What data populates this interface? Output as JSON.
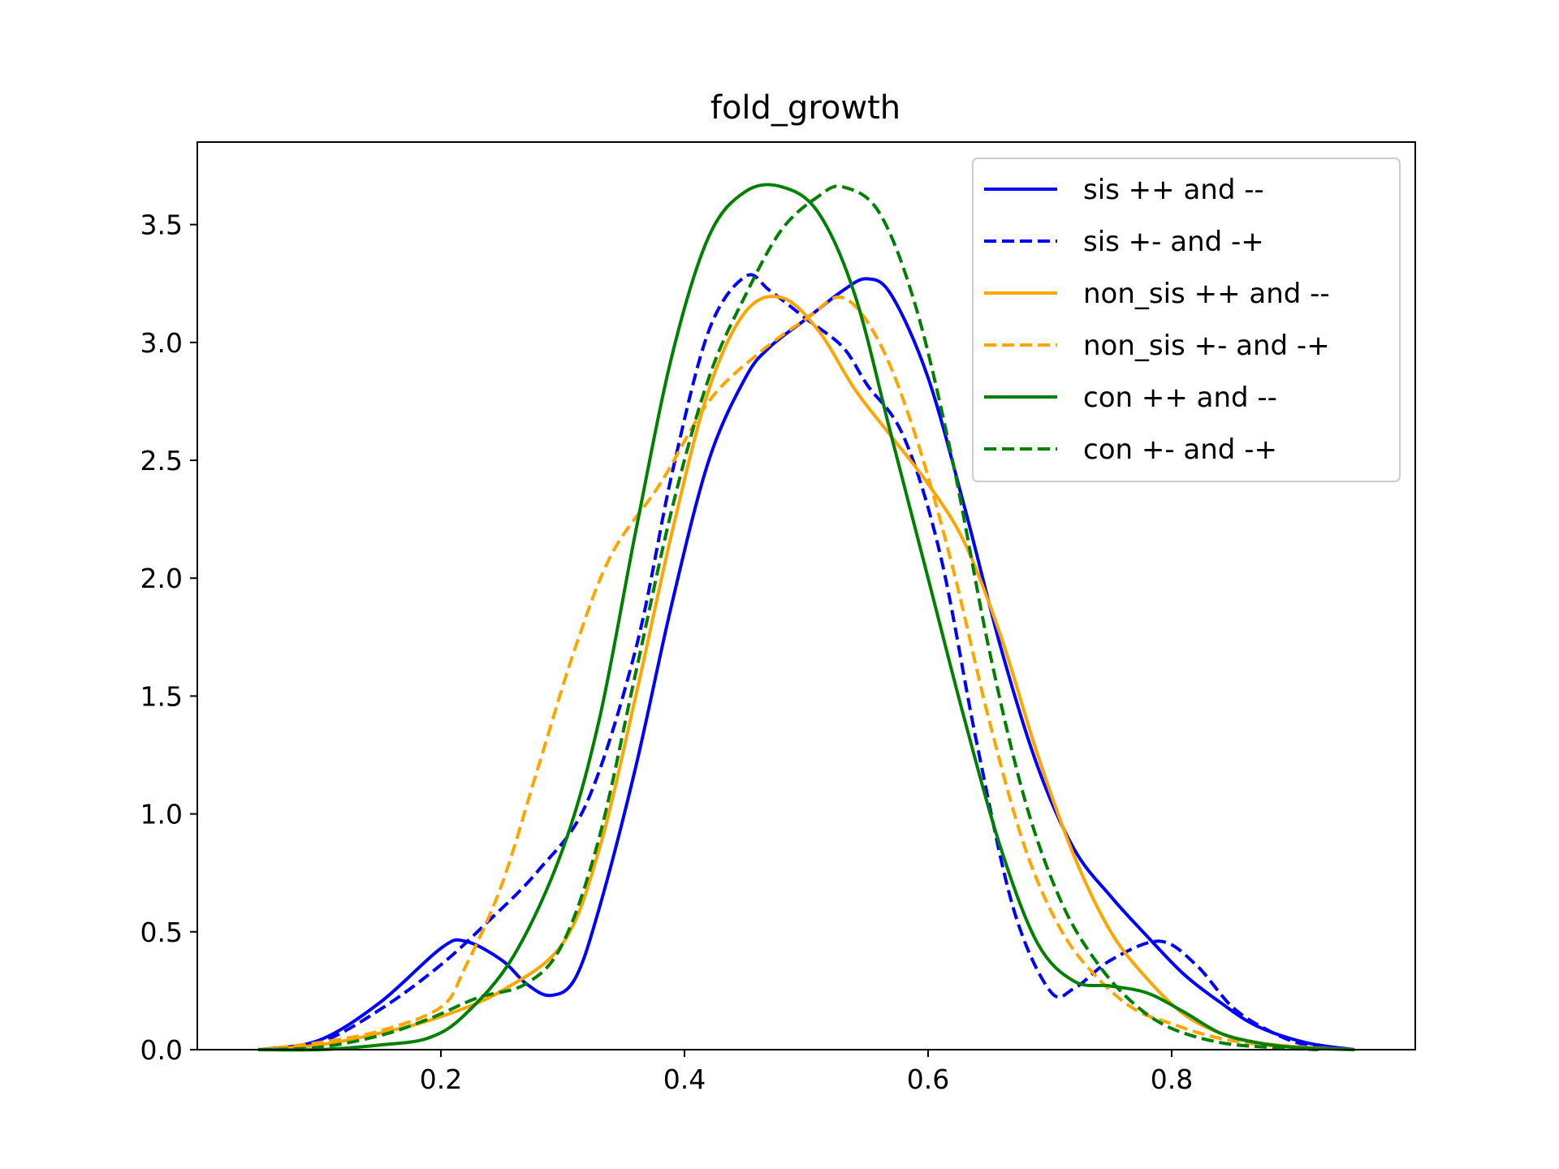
{
  "chart_data": {
    "type": "line",
    "title": "fold_growth",
    "xlabel": "",
    "ylabel": "",
    "xlim": [
      0.0,
      1.0
    ],
    "ylim": [
      0.0,
      3.85
    ],
    "xticks": [
      0.2,
      0.4,
      0.6,
      0.8
    ],
    "xtick_labels": [
      "0.2",
      "0.4",
      "0.6",
      "0.8"
    ],
    "yticks": [
      0.0,
      0.5,
      1.0,
      1.5,
      2.0,
      2.5,
      3.0,
      3.5
    ],
    "ytick_labels": [
      "0.0",
      "0.5",
      "1.0",
      "1.5",
      "2.0",
      "2.5",
      "3.0",
      "3.5"
    ],
    "grid": false,
    "legend_position": "top-right",
    "series": [
      {
        "name": "sis ++ and --",
        "color": "#0000ff",
        "style": "solid",
        "points": [
          [
            0.05,
            0.0
          ],
          [
            0.1,
            0.04
          ],
          [
            0.15,
            0.2
          ],
          [
            0.2,
            0.43
          ],
          [
            0.22,
            0.46
          ],
          [
            0.25,
            0.38
          ],
          [
            0.27,
            0.28
          ],
          [
            0.29,
            0.23
          ],
          [
            0.31,
            0.3
          ],
          [
            0.33,
            0.6
          ],
          [
            0.36,
            1.2
          ],
          [
            0.39,
            1.9
          ],
          [
            0.42,
            2.5
          ],
          [
            0.45,
            2.85
          ],
          [
            0.47,
            2.98
          ],
          [
            0.5,
            3.1
          ],
          [
            0.53,
            3.22
          ],
          [
            0.55,
            3.27
          ],
          [
            0.57,
            3.2
          ],
          [
            0.6,
            2.85
          ],
          [
            0.63,
            2.3
          ],
          [
            0.66,
            1.7
          ],
          [
            0.69,
            1.2
          ],
          [
            0.72,
            0.85
          ],
          [
            0.75,
            0.65
          ],
          [
            0.78,
            0.48
          ],
          [
            0.81,
            0.32
          ],
          [
            0.84,
            0.2
          ],
          [
            0.87,
            0.1
          ],
          [
            0.91,
            0.03
          ],
          [
            0.95,
            0.0
          ]
        ]
      },
      {
        "name": "sis +- and -+",
        "color": "#0000ff",
        "style": "dashed",
        "points": [
          [
            0.05,
            0.0
          ],
          [
            0.1,
            0.03
          ],
          [
            0.15,
            0.17
          ],
          [
            0.2,
            0.36
          ],
          [
            0.24,
            0.55
          ],
          [
            0.28,
            0.76
          ],
          [
            0.32,
            1.05
          ],
          [
            0.36,
            1.7
          ],
          [
            0.39,
            2.45
          ],
          [
            0.42,
            3.05
          ],
          [
            0.45,
            3.28
          ],
          [
            0.47,
            3.22
          ],
          [
            0.5,
            3.1
          ],
          [
            0.53,
            2.98
          ],
          [
            0.55,
            2.82
          ],
          [
            0.58,
            2.6
          ],
          [
            0.61,
            2.1
          ],
          [
            0.64,
            1.3
          ],
          [
            0.67,
            0.6
          ],
          [
            0.7,
            0.25
          ],
          [
            0.72,
            0.26
          ],
          [
            0.75,
            0.38
          ],
          [
            0.79,
            0.46
          ],
          [
            0.82,
            0.36
          ],
          [
            0.85,
            0.18
          ],
          [
            0.88,
            0.08
          ],
          [
            0.91,
            0.02
          ],
          [
            0.95,
            0.0
          ]
        ]
      },
      {
        "name": "non_sis ++ and --",
        "color": "#ffa500",
        "style": "solid",
        "points": [
          [
            0.05,
            0.0
          ],
          [
            0.1,
            0.02
          ],
          [
            0.15,
            0.07
          ],
          [
            0.2,
            0.14
          ],
          [
            0.25,
            0.25
          ],
          [
            0.3,
            0.45
          ],
          [
            0.33,
            0.85
          ],
          [
            0.36,
            1.5
          ],
          [
            0.39,
            2.2
          ],
          [
            0.42,
            2.8
          ],
          [
            0.45,
            3.13
          ],
          [
            0.48,
            3.19
          ],
          [
            0.51,
            3.05
          ],
          [
            0.54,
            2.8
          ],
          [
            0.57,
            2.6
          ],
          [
            0.6,
            2.4
          ],
          [
            0.63,
            2.15
          ],
          [
            0.66,
            1.75
          ],
          [
            0.69,
            1.25
          ],
          [
            0.72,
            0.82
          ],
          [
            0.75,
            0.5
          ],
          [
            0.78,
            0.3
          ],
          [
            0.81,
            0.15
          ],
          [
            0.84,
            0.07
          ],
          [
            0.87,
            0.03
          ],
          [
            0.91,
            0.01
          ],
          [
            0.95,
            0.0
          ]
        ]
      },
      {
        "name": "non_sis +- and -+",
        "color": "#ffa500",
        "style": "dashed",
        "points": [
          [
            0.05,
            0.0
          ],
          [
            0.1,
            0.03
          ],
          [
            0.15,
            0.08
          ],
          [
            0.2,
            0.18
          ],
          [
            0.22,
            0.35
          ],
          [
            0.25,
            0.7
          ],
          [
            0.28,
            1.2
          ],
          [
            0.31,
            1.7
          ],
          [
            0.34,
            2.1
          ],
          [
            0.38,
            2.4
          ],
          [
            0.42,
            2.75
          ],
          [
            0.46,
            2.95
          ],
          [
            0.5,
            3.1
          ],
          [
            0.53,
            3.19
          ],
          [
            0.56,
            3.0
          ],
          [
            0.59,
            2.6
          ],
          [
            0.62,
            2.05
          ],
          [
            0.65,
            1.4
          ],
          [
            0.68,
            0.85
          ],
          [
            0.71,
            0.5
          ],
          [
            0.74,
            0.3
          ],
          [
            0.77,
            0.17
          ],
          [
            0.8,
            0.11
          ],
          [
            0.83,
            0.06
          ],
          [
            0.86,
            0.03
          ],
          [
            0.9,
            0.01
          ],
          [
            0.95,
            0.0
          ]
        ]
      },
      {
        "name": "con ++ and --",
        "color": "#008000",
        "style": "solid",
        "points": [
          [
            0.05,
            0.0
          ],
          [
            0.1,
            0.0
          ],
          [
            0.15,
            0.02
          ],
          [
            0.19,
            0.05
          ],
          [
            0.22,
            0.15
          ],
          [
            0.26,
            0.4
          ],
          [
            0.3,
            0.85
          ],
          [
            0.33,
            1.4
          ],
          [
            0.36,
            2.2
          ],
          [
            0.39,
            2.95
          ],
          [
            0.42,
            3.45
          ],
          [
            0.45,
            3.64
          ],
          [
            0.48,
            3.66
          ],
          [
            0.51,
            3.55
          ],
          [
            0.54,
            3.2
          ],
          [
            0.57,
            2.6
          ],
          [
            0.6,
            2.0
          ],
          [
            0.63,
            1.4
          ],
          [
            0.66,
            0.85
          ],
          [
            0.69,
            0.45
          ],
          [
            0.72,
            0.29
          ],
          [
            0.75,
            0.27
          ],
          [
            0.78,
            0.24
          ],
          [
            0.81,
            0.16
          ],
          [
            0.84,
            0.07
          ],
          [
            0.87,
            0.03
          ],
          [
            0.9,
            0.01
          ],
          [
            0.95,
            0.0
          ]
        ]
      },
      {
        "name": "con +- and -+",
        "color": "#008000",
        "style": "dashed",
        "points": [
          [
            0.05,
            0.0
          ],
          [
            0.1,
            0.01
          ],
          [
            0.15,
            0.06
          ],
          [
            0.19,
            0.13
          ],
          [
            0.23,
            0.22
          ],
          [
            0.27,
            0.28
          ],
          [
            0.3,
            0.45
          ],
          [
            0.33,
            0.9
          ],
          [
            0.36,
            1.6
          ],
          [
            0.39,
            2.3
          ],
          [
            0.42,
            2.85
          ],
          [
            0.45,
            3.2
          ],
          [
            0.48,
            3.48
          ],
          [
            0.51,
            3.62
          ],
          [
            0.53,
            3.66
          ],
          [
            0.56,
            3.55
          ],
          [
            0.59,
            3.15
          ],
          [
            0.62,
            2.5
          ],
          [
            0.65,
            1.7
          ],
          [
            0.68,
            1.05
          ],
          [
            0.71,
            0.62
          ],
          [
            0.74,
            0.36
          ],
          [
            0.77,
            0.19
          ],
          [
            0.8,
            0.09
          ],
          [
            0.84,
            0.03
          ],
          [
            0.88,
            0.01
          ],
          [
            0.92,
            0.0
          ]
        ]
      }
    ]
  }
}
